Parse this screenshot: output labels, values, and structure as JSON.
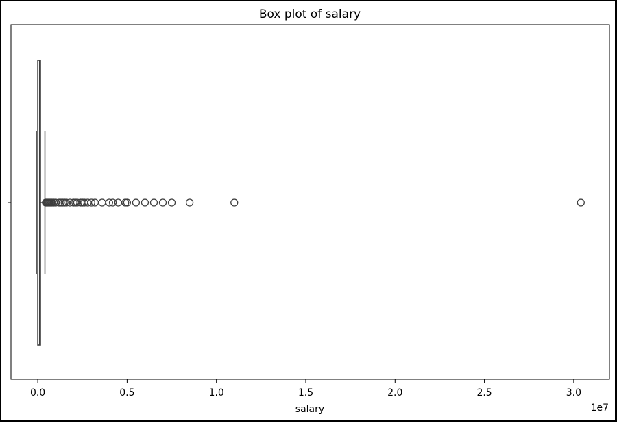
{
  "chart_data": {
    "type": "box",
    "title": "Box plot of salary",
    "xlabel": "salary",
    "ylabel": "",
    "offset_text": "1e7",
    "x_ticks": [
      0.0,
      0.5,
      1.0,
      1.5,
      2.0,
      2.5,
      3.0
    ],
    "x_tick_labels": [
      "0.0",
      "0.5",
      "1.0",
      "1.5",
      "2.0",
      "2.5",
      "3.0"
    ],
    "xlim": [
      -0.15,
      3.2
    ],
    "scale_factor": 10000000,
    "box": {
      "q1": 0.0,
      "median": 0.01,
      "q3": 0.015,
      "whisker_low": 0.0,
      "whisker_high": 0.04
    },
    "outliers": [
      0.045,
      0.05,
      0.055,
      0.06,
      0.065,
      0.07,
      0.075,
      0.08,
      0.09,
      0.1,
      0.12,
      0.13,
      0.14,
      0.15,
      0.16,
      0.18,
      0.2,
      0.21,
      0.22,
      0.24,
      0.25,
      0.26,
      0.28,
      0.3,
      0.32,
      0.36,
      0.4,
      0.42,
      0.45,
      0.49,
      0.5,
      0.55,
      0.6,
      0.65,
      0.7,
      0.75,
      0.85,
      1.1,
      3.04
    ],
    "grid": false,
    "colors": {
      "box_edge": "#3d3d3d",
      "box_fill": "#ffffff",
      "outlier_edge": "#3d3d3d",
      "axis": "#000000"
    }
  }
}
